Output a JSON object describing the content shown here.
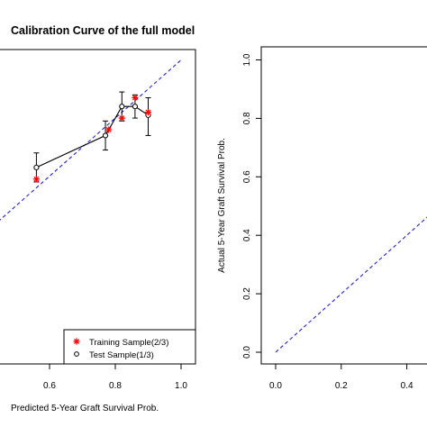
{
  "chart_data": [
    {
      "type": "scatter",
      "title": "Calibration Curve of the full model",
      "xlabel": "Predicted 5-Year Graft Survival Prob.",
      "ylabel": "",
      "x_ticks": [
        "0.6",
        "0.8",
        "1.0"
      ],
      "y_ticks": [],
      "xlim": [
        0.2,
        1.0
      ],
      "ylim": [
        0.0,
        1.05
      ],
      "reference_line": {
        "from": [
          0.0,
          0.0
        ],
        "to": [
          1.0,
          1.0
        ],
        "style": "dashed",
        "color": "#2222cc"
      },
      "legend": {
        "position": "bottom-right",
        "entries": [
          {
            "label": "Training Sample(2/3)",
            "marker": "*",
            "color": "#ff0000"
          },
          {
            "label": "Test Sample(1/3)",
            "marker": "o",
            "color": "#000000"
          }
        ]
      },
      "series": [
        {
          "name": "Training Sample(2/3)",
          "marker": "asterisk",
          "color": "#ff0000",
          "points": [
            {
              "x": 0.56,
              "y": 0.59
            },
            {
              "x": 0.78,
              "y": 0.76
            },
            {
              "x": 0.82,
              "y": 0.8
            },
            {
              "x": 0.86,
              "y": 0.87
            },
            {
              "x": 0.9,
              "y": 0.82
            }
          ]
        },
        {
          "name": "Test Sample(1/3)",
          "marker": "circle",
          "color": "#000000",
          "points": [
            {
              "x": 0.56,
              "y": 0.63,
              "lo": 0.58,
              "hi": 0.68
            },
            {
              "x": 0.77,
              "y": 0.74,
              "lo": 0.69,
              "hi": 0.79
            },
            {
              "x": 0.82,
              "y": 0.84,
              "lo": 0.79,
              "hi": 0.89
            },
            {
              "x": 0.86,
              "y": 0.84,
              "lo": 0.8,
              "hi": 0.88
            },
            {
              "x": 0.9,
              "y": 0.81,
              "lo": 0.74,
              "hi": 0.87
            }
          ]
        }
      ]
    },
    {
      "type": "line",
      "title": "",
      "xlabel": "",
      "ylabel": "Actual 5-Year Graft Survival Prob.",
      "x_ticks": [
        "0.0",
        "0.2",
        "0.4"
      ],
      "y_ticks": [
        "0.0",
        "0.2",
        "0.4",
        "0.6",
        "0.8",
        "1.0"
      ],
      "xlim": [
        0.0,
        0.5
      ],
      "ylim": [
        0.0,
        1.0
      ],
      "reference_line": {
        "from": [
          0.0,
          0.0
        ],
        "to": [
          1.0,
          1.0
        ],
        "style": "dashed",
        "color": "#2222cc"
      }
    }
  ]
}
